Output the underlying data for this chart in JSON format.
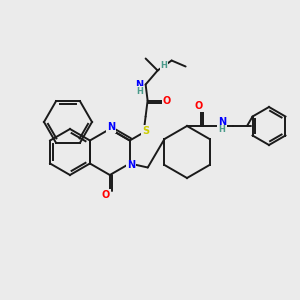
{
  "background_color": "#ebebeb",
  "bond_color": "#1a1a1a",
  "atom_colors": {
    "N": "#0000ff",
    "O": "#ff0000",
    "S": "#cccc00",
    "C": "#1a1a1a",
    "H": "#4a9a8a"
  },
  "bg": "#ebebeb"
}
